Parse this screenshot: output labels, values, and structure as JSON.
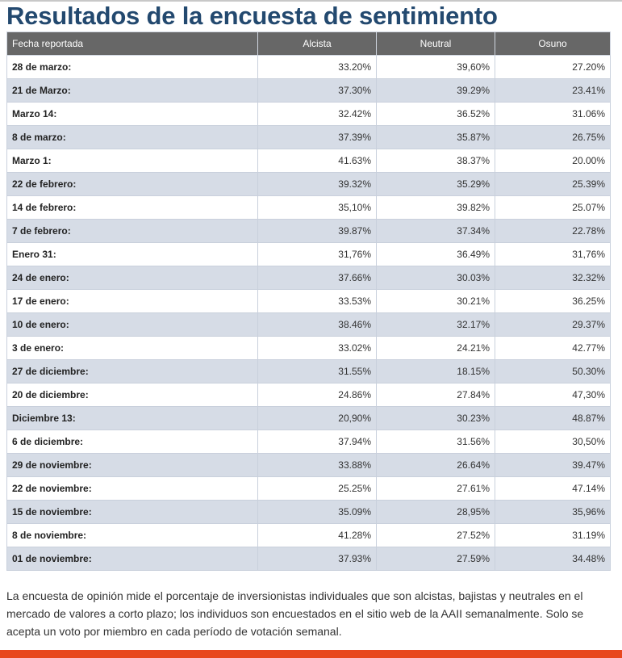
{
  "title": "Resultados de la encuesta de sentimiento",
  "table": {
    "headers": [
      "Fecha reportada",
      "Alcista",
      "Neutral",
      "Osuno"
    ],
    "rows": [
      [
        "28 de marzo:",
        "33.20%",
        "39,60%",
        "27.20%"
      ],
      [
        "21 de Marzo:",
        "37.30%",
        "39.29%",
        "23.41%"
      ],
      [
        "Marzo 14:",
        "32.42%",
        "36.52%",
        "31.06%"
      ],
      [
        "8 de marzo:",
        "37.39%",
        "35.87%",
        "26.75%"
      ],
      [
        "Marzo 1:",
        "41.63%",
        "38.37%",
        "20.00%"
      ],
      [
        "22 de febrero:",
        "39.32%",
        "35.29%",
        "25.39%"
      ],
      [
        "14 de febrero:",
        "35,10%",
        "39.82%",
        "25.07%"
      ],
      [
        "7 de febrero:",
        "39.87%",
        "37.34%",
        "22.78%"
      ],
      [
        "Enero 31:",
        "31,76%",
        "36.49%",
        "31,76%"
      ],
      [
        "24 de enero:",
        "37.66%",
        "30.03%",
        "32.32%"
      ],
      [
        "17 de enero:",
        "33.53%",
        "30.21%",
        "36.25%"
      ],
      [
        "10 de enero:",
        "38.46%",
        "32.17%",
        "29.37%"
      ],
      [
        "3 de enero:",
        "33.02%",
        "24.21%",
        "42.77%"
      ],
      [
        "27 de diciembre:",
        "31.55%",
        "18.15%",
        "50.30%"
      ],
      [
        "20 de diciembre:",
        "24.86%",
        "27.84%",
        "47,30%"
      ],
      [
        "Diciembre 13:",
        "20,90%",
        "30.23%",
        "48.87%"
      ],
      [
        "6 de diciembre:",
        "37.94%",
        "31.56%",
        "30,50%"
      ],
      [
        "29 de noviembre:",
        "33.88%",
        "26.64%",
        "39.47%"
      ],
      [
        "22 de noviembre:",
        "25.25%",
        "27.61%",
        "47.14%"
      ],
      [
        "15 de noviembre:",
        "35.09%",
        "28,95%",
        "35,96%"
      ],
      [
        "8 de noviembre:",
        "41.28%",
        "27.52%",
        "31.19%"
      ],
      [
        "01 de noviembre:",
        "37.93%",
        "27.59%",
        "34.48%"
      ]
    ]
  },
  "description": "La encuesta de opinión mide el porcentaje de inversionistas individuales que son alcistas, bajistas y neutrales en el mercado de valores a corto plazo; los individuos son encuestados en el sitio web de la AAII semanalmente. Solo se acepta un voto por miembro en cada período de votación semanal.",
  "colors": {
    "title": "#23496f",
    "header_bg": "#676767",
    "alt_row": "#d6dce6",
    "footer_bar": "#e8481e"
  }
}
